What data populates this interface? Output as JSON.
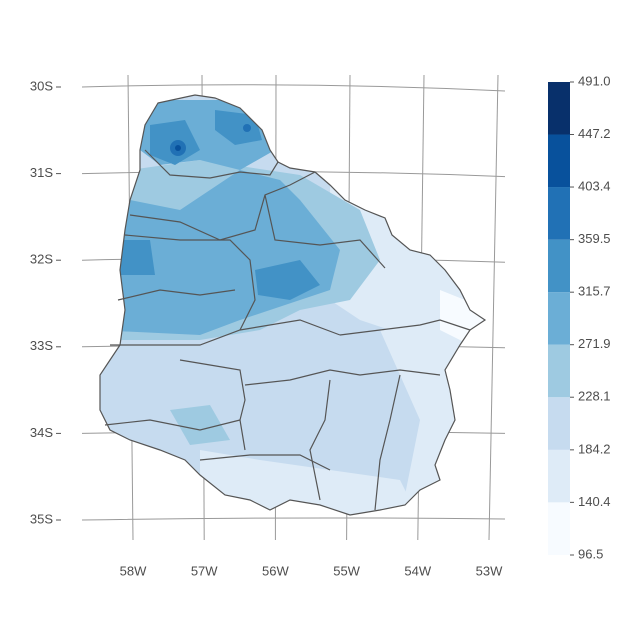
{
  "map": {
    "lat_labels": [
      "30S",
      "31S",
      "32S",
      "33S",
      "34S",
      "35S"
    ],
    "lon_labels": [
      "58W",
      "57W",
      "56W",
      "55W",
      "54W",
      "53W"
    ],
    "legend": {
      "breaks": [
        96.5,
        140.4,
        184.2,
        228.1,
        271.9,
        315.7,
        359.5,
        403.4,
        447.2,
        {
          "value": 491,
          "label": "491.0"
        }
      ],
      "colors": [
        "#f7fbff",
        "#deebf7",
        "#c6dbef",
        "#9ecae1",
        "#6baed6",
        "#4292c6",
        "#2171b5",
        "#08519c",
        "#08306b"
      ]
    }
  }
}
